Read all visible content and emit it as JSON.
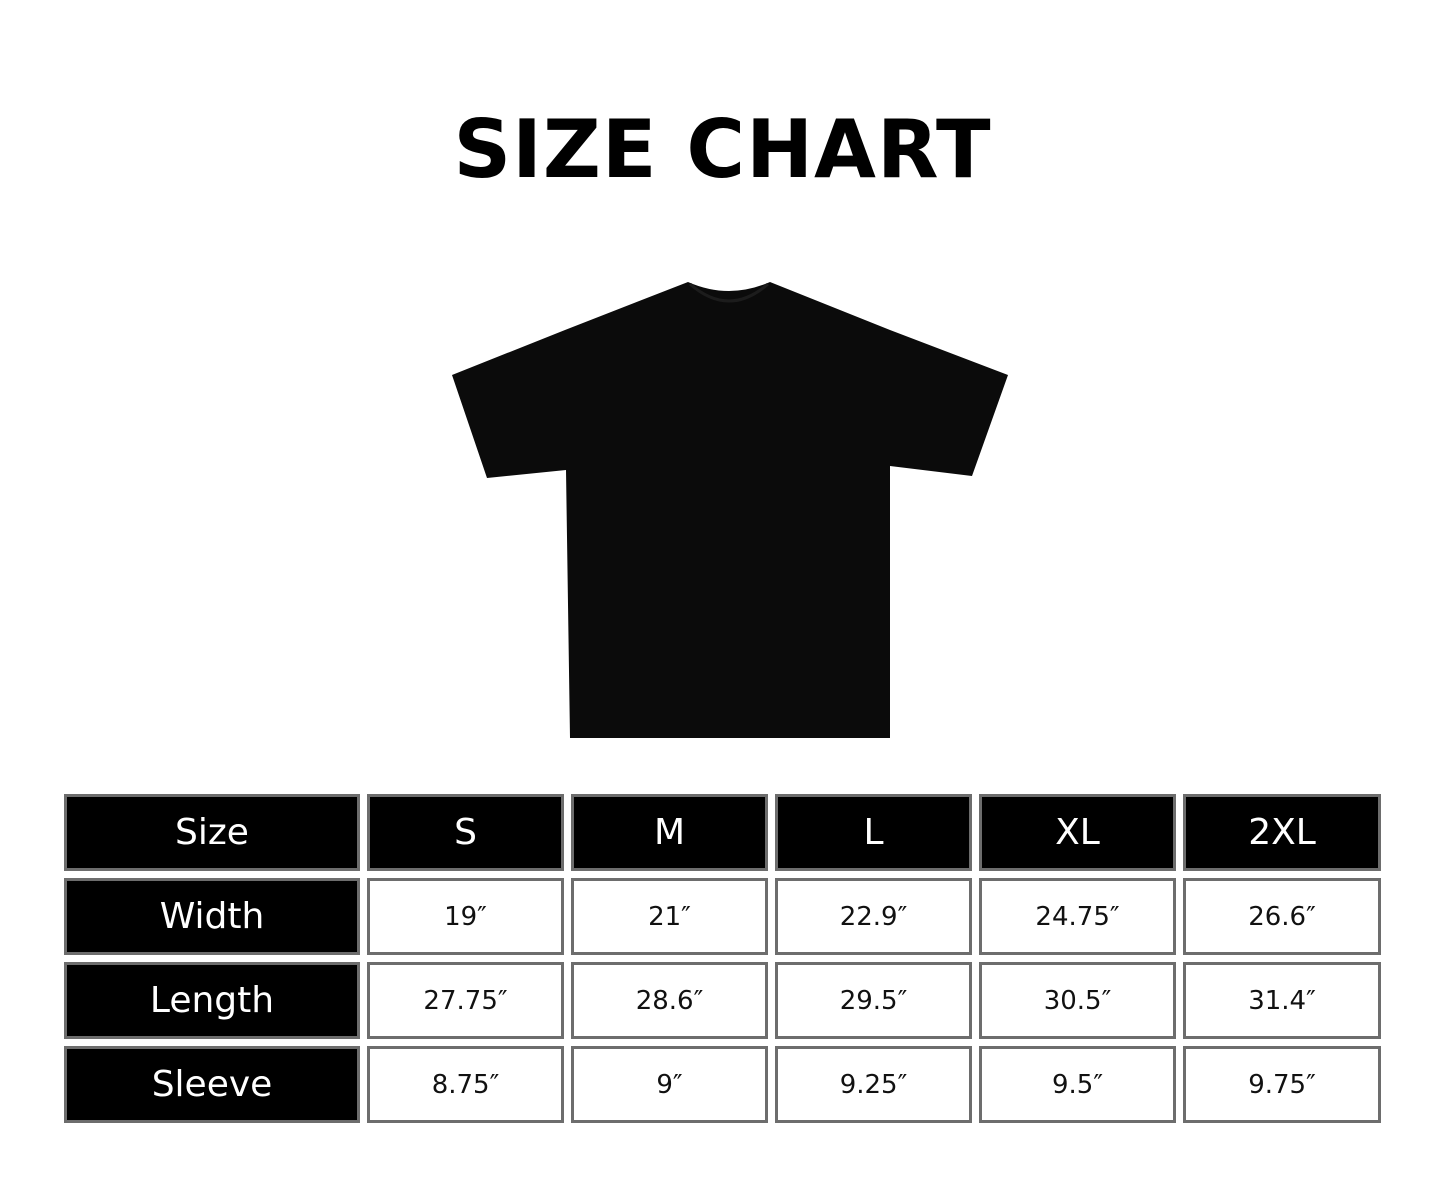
{
  "title": "SIZE CHART",
  "product_image": {
    "name": "black-t-shirt",
    "color": "#0a0a0a"
  },
  "table": {
    "header": [
      "Size",
      "S",
      "M",
      "L",
      "XL",
      "2XL"
    ],
    "rows": [
      {
        "label": "Width",
        "values": [
          "19″",
          "21″",
          "22.9″",
          "24.75″",
          "26.6″"
        ]
      },
      {
        "label": "Length",
        "values": [
          "27.75″",
          "28.6″",
          "29.5″",
          "30.5″",
          "31.4″"
        ]
      },
      {
        "label": "Sleeve",
        "values": [
          "8.75″",
          "9″",
          "9.25″",
          "9.5″",
          "9.75″"
        ]
      }
    ]
  },
  "colors": {
    "header_bg": "#000000",
    "border": "#6d6d6d",
    "cell_bg": "#ffffff"
  }
}
